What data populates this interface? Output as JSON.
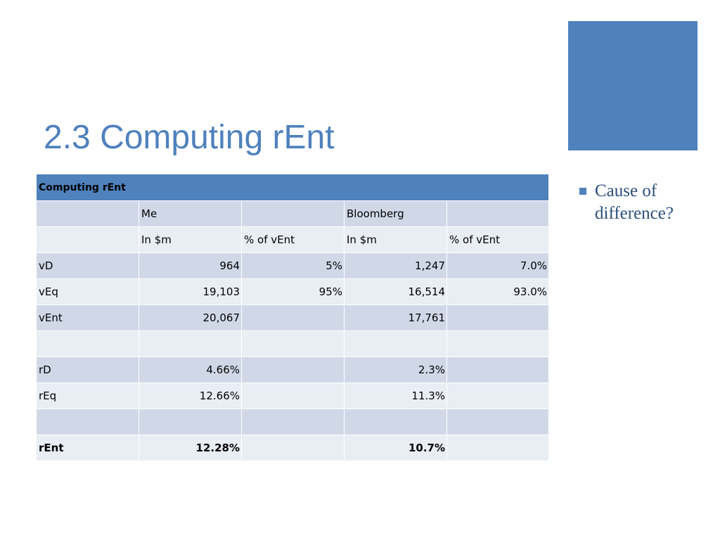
{
  "slide": {
    "title": "2.3 Computing rEnt",
    "accent_color": "#4f81bd"
  },
  "table": {
    "caption": "Computing rEnt",
    "group_header": [
      "",
      "Me",
      "",
      "Bloomberg",
      ""
    ],
    "sub_header": [
      "",
      "In $m",
      "% of vEnt",
      "In $m",
      "% of vEnt"
    ],
    "rows": [
      [
        "vD",
        "964",
        "5%",
        "1,247",
        "7.0%"
      ],
      [
        "vEq",
        "19,103",
        "95%",
        "16,514",
        "93.0%"
      ],
      [
        "vEnt",
        "20,067",
        "",
        "17,761",
        ""
      ],
      [
        "",
        "",
        "",
        "",
        ""
      ],
      [
        "rD",
        "4.66%",
        "",
        "2.3%",
        ""
      ],
      [
        "rEq",
        "12.66%",
        "",
        "11.3%",
        ""
      ],
      [
        "",
        "",
        "",
        "",
        ""
      ],
      [
        "rEnt",
        "12.28%",
        "",
        "10.7%",
        ""
      ]
    ]
  },
  "bullets": [
    "Cause of difference?"
  ]
}
